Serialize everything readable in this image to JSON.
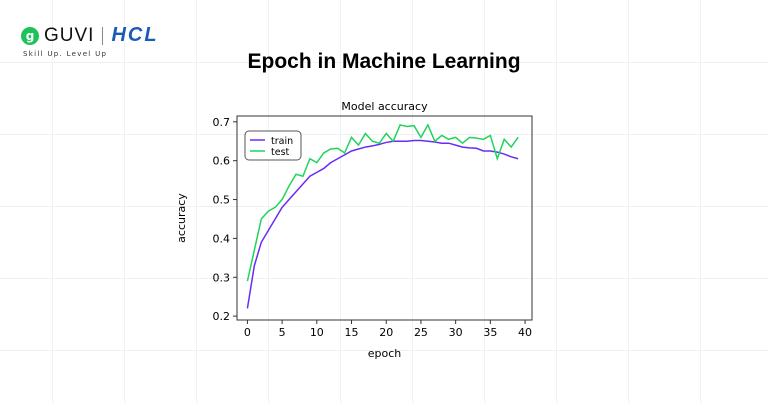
{
  "brand": {
    "guvi": "GUVI",
    "hcl": "HCL",
    "tagline": "Skill Up. Level Up",
    "logo_color": "#1ec25a",
    "hcl_color": "#1a5cb5"
  },
  "page_title": "Epoch in Machine Learning",
  "chart_data": {
    "type": "line",
    "title": "Model accuracy",
    "xlabel": "epoch",
    "ylabel": "accuracy",
    "xlim": [
      -1.5,
      41
    ],
    "ylim": [
      0.19,
      0.715
    ],
    "xticks": [
      0,
      5,
      10,
      15,
      20,
      25,
      30,
      35,
      40
    ],
    "yticks": [
      0.2,
      0.3,
      0.4,
      0.5,
      0.6,
      0.7
    ],
    "legend": "top-left",
    "grid": false,
    "x": [
      0,
      1,
      2,
      3,
      4,
      5,
      6,
      7,
      8,
      9,
      10,
      11,
      12,
      13,
      14,
      15,
      16,
      17,
      18,
      19,
      20,
      21,
      22,
      23,
      24,
      25,
      26,
      27,
      28,
      29,
      30,
      31,
      32,
      33,
      34,
      35,
      36,
      37,
      38,
      39
    ],
    "series": [
      {
        "name": "train",
        "color": "#6a2cf5",
        "values": [
          0.22,
          0.33,
          0.39,
          0.42,
          0.45,
          0.48,
          0.5,
          0.52,
          0.54,
          0.56,
          0.57,
          0.58,
          0.595,
          0.605,
          0.615,
          0.625,
          0.63,
          0.635,
          0.638,
          0.642,
          0.647,
          0.65,
          0.65,
          0.65,
          0.652,
          0.652,
          0.65,
          0.648,
          0.645,
          0.645,
          0.64,
          0.635,
          0.633,
          0.632,
          0.625,
          0.625,
          0.622,
          0.617,
          0.61,
          0.605
        ]
      },
      {
        "name": "test",
        "color": "#1fd45a",
        "values": [
          0.29,
          0.37,
          0.45,
          0.47,
          0.48,
          0.5,
          0.535,
          0.565,
          0.56,
          0.605,
          0.595,
          0.62,
          0.63,
          0.632,
          0.62,
          0.66,
          0.64,
          0.67,
          0.65,
          0.645,
          0.67,
          0.65,
          0.692,
          0.688,
          0.69,
          0.66,
          0.692,
          0.65,
          0.665,
          0.655,
          0.66,
          0.645,
          0.66,
          0.658,
          0.655,
          0.665,
          0.605,
          0.655,
          0.635,
          0.66
        ]
      }
    ]
  }
}
